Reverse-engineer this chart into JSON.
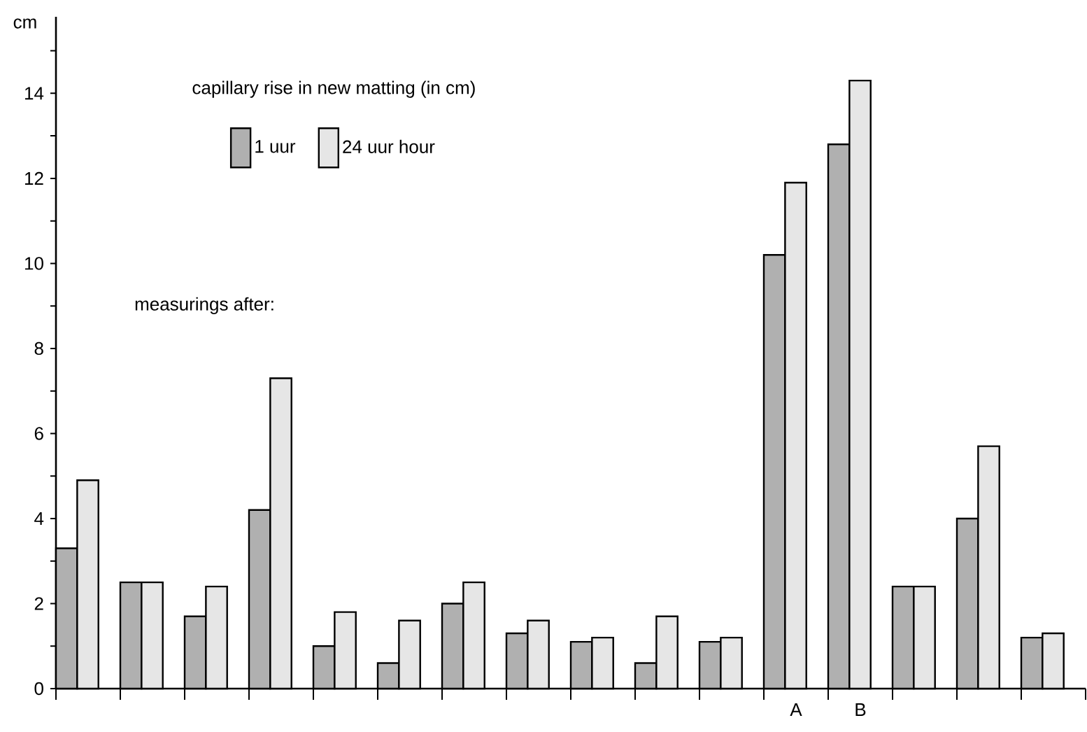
{
  "chart_data": {
    "type": "bar",
    "legend_title": "capillary rise in new matting (in cm)",
    "ylabel": "cm",
    "annotations": [
      "measurings after:"
    ],
    "categories": [
      null,
      null,
      null,
      null,
      null,
      null,
      null,
      null,
      null,
      null,
      null,
      "A",
      "B",
      null,
      null,
      null
    ],
    "series": [
      {
        "name": "1 uur",
        "color": "#b0b0b0",
        "values": [
          3.3,
          2.5,
          1.7,
          4.2,
          1.0,
          0.6,
          2.0,
          1.3,
          1.1,
          0.6,
          1.1,
          10.2,
          12.8,
          2.4,
          4.0,
          1.2
        ]
      },
      {
        "name": "24 uur hour",
        "color": "#e6e6e6",
        "values": [
          4.9,
          2.5,
          2.4,
          7.3,
          1.8,
          1.6,
          2.5,
          1.6,
          1.2,
          1.7,
          1.2,
          11.9,
          14.3,
          2.4,
          5.7,
          1.3
        ]
      }
    ],
    "ylim": [
      0,
      15.8
    ],
    "yticks": [
      0,
      {
        "value": 1,
        "label": null
      },
      2,
      {
        "value": 3,
        "label": null
      },
      4,
      {
        "value": 5,
        "label": null
      },
      6,
      {
        "value": 7,
        "label": null
      },
      8,
      {
        "value": 9,
        "label": null
      },
      10,
      {
        "value": 11,
        "label": null
      },
      12,
      {
        "value": 13,
        "label": null
      },
      14,
      {
        "value": 15,
        "label": null
      }
    ],
    "grid": false,
    "legend": "top left"
  }
}
